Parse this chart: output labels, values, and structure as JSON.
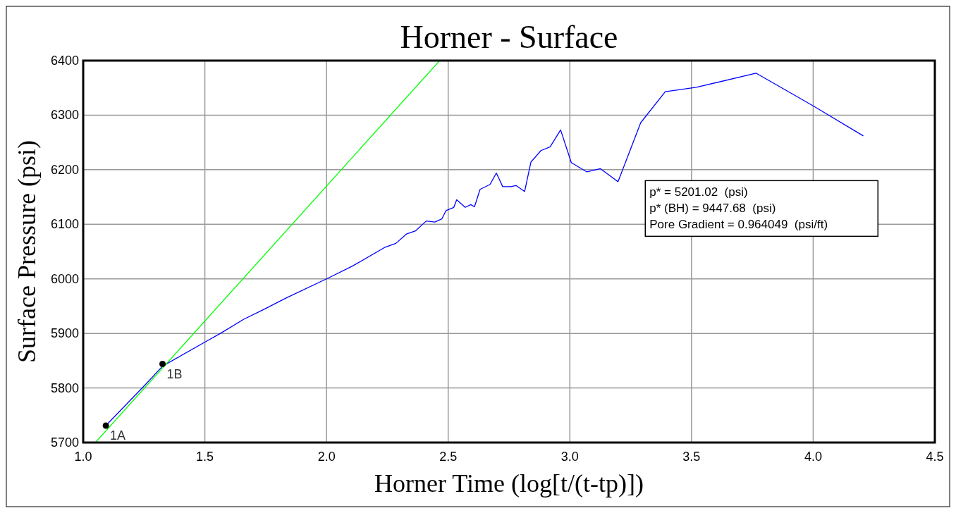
{
  "chart_data": {
    "type": "line",
    "title": "Horner - Surface",
    "xlabel": "Horner Time (log[t/(t-tp)])",
    "ylabel": "Surface Pressure (psi)",
    "xlim": [
      1.0,
      4.5
    ],
    "xticks": [
      {
        "value": 1,
        "label": "1.0"
      },
      {
        "value": 1.5,
        "label": "1.5"
      },
      {
        "value": 2,
        "label": "2.0"
      },
      {
        "value": 2.5,
        "label": "2.5"
      },
      {
        "value": 3,
        "label": "3.0"
      },
      {
        "value": 3.5,
        "label": "3.5"
      },
      {
        "value": 4,
        "label": "4.0"
      },
      {
        "value": 4.5,
        "label": "4.5"
      }
    ],
    "ylim": [
      5700,
      6400
    ],
    "yticks": [
      5700,
      5800,
      5900,
      6000,
      6100,
      6200,
      6300,
      6400
    ],
    "grid": true,
    "series": [
      {
        "color": "#0000ff",
        "x": [
          1.093,
          1.253,
          1.326,
          1.5,
          1.564,
          1.66,
          1.738,
          1.834,
          2.0,
          2.105,
          2.241,
          2.285,
          2.328,
          2.366,
          2.41,
          2.445,
          2.474,
          2.491,
          2.523,
          2.535,
          2.57,
          2.593,
          2.608,
          2.631,
          2.672,
          2.698,
          2.724,
          2.756,
          2.779,
          2.814,
          2.84,
          2.881,
          2.919,
          2.962,
          3.006,
          3.07,
          3.125,
          3.198,
          3.291,
          3.392,
          3.52,
          3.765,
          4.0,
          4.206
        ],
        "values": [
          5731,
          5805,
          5840,
          5884,
          5900,
          5926,
          5943,
          5965,
          6000,
          6023,
          6058,
          6065,
          6082,
          6088,
          6106,
          6104,
          6110,
          6125,
          6131,
          6145,
          6131,
          6136,
          6132,
          6164,
          6173,
          6194,
          6169,
          6169,
          6171,
          6160,
          6214,
          6235,
          6242,
          6273,
          6213,
          6196,
          6202,
          6178,
          6286,
          6343,
          6351,
          6377,
          6317,
          6262
        ]
      },
      {
        "color": "#00ff00",
        "x": [
          1.05,
          2.465
        ],
        "values": [
          5700,
          6400
        ]
      },
      {
        "type": "scatter",
        "color": "#000000",
        "marker": "circle",
        "x": [
          1.093,
          1.326
        ],
        "values": [
          5731,
          5844
        ]
      }
    ],
    "annotations": [
      {
        "text": "1A",
        "x": 1.093,
        "y": 5731
      },
      {
        "text": "1B",
        "x": 1.326,
        "y": 5844
      },
      "p* = 5201.02  (psi)",
      "p* (BH) = 9447.68  (psi)",
      "Pore Gradient = 0.964049  (psi/ft)"
    ]
  }
}
